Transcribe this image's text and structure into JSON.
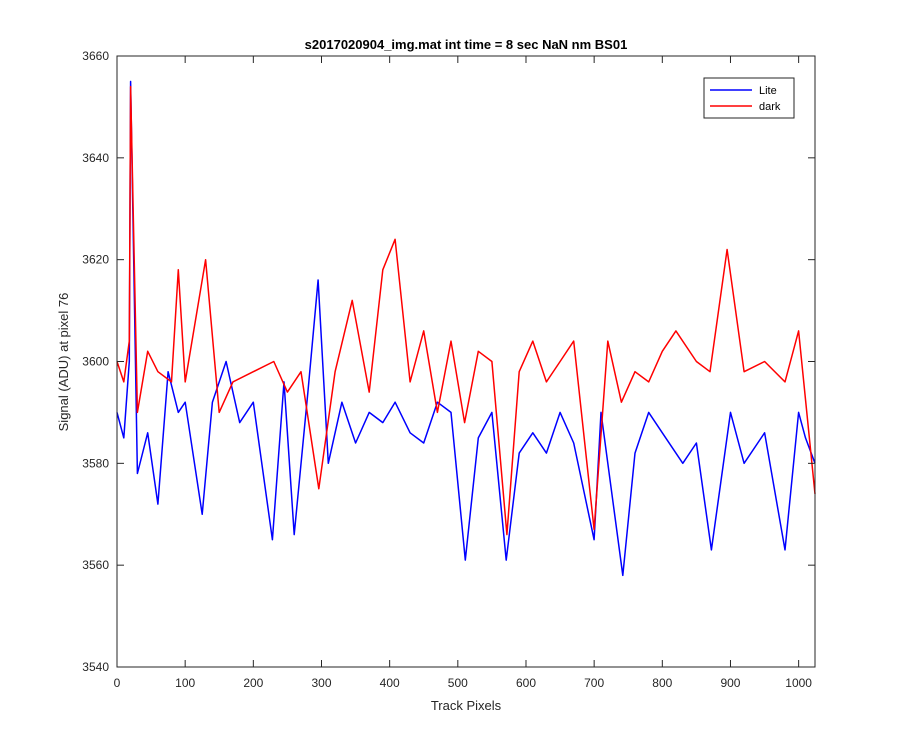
{
  "chart_data": {
    "type": "line",
    "title": "s2017020904_img.mat int time = 8 sec  NaN nm BS01",
    "xlabel": "Track Pixels",
    "ylabel": "Signal (ADU) at pixel 76",
    "xlim": [
      0,
      1024
    ],
    "ylim": [
      3540,
      3660
    ],
    "xticks": [
      0,
      100,
      200,
      300,
      400,
      500,
      600,
      700,
      800,
      900,
      1000
    ],
    "yticks": [
      3540,
      3560,
      3580,
      3600,
      3620,
      3640,
      3660
    ],
    "grid": false,
    "legend": {
      "position": "top-right"
    },
    "series": [
      {
        "name": "Lite",
        "color": "#0000ff",
        "x": [
          0,
          10,
          18,
          20,
          30,
          45,
          60,
          75,
          90,
          100,
          125,
          140,
          160,
          180,
          200,
          228,
          245,
          260,
          280,
          295,
          310,
          330,
          350,
          370,
          390,
          408,
          430,
          450,
          470,
          490,
          511,
          530,
          550,
          571,
          590,
          610,
          630,
          650,
          670,
          700,
          710,
          742,
          760,
          780,
          800,
          830,
          850,
          872,
          900,
          920,
          950,
          980,
          1000,
          1010,
          1024
        ],
        "y": [
          3590,
          3585,
          3600,
          3655,
          3578,
          3586,
          3572,
          3598,
          3590,
          3592,
          3570,
          3592,
          3600,
          3588,
          3592,
          3565,
          3596,
          3566,
          3594,
          3616,
          3580,
          3592,
          3584,
          3590,
          3588,
          3592,
          3586,
          3584,
          3592,
          3590,
          3561,
          3585,
          3590,
          3561,
          3582,
          3586,
          3582,
          3590,
          3584,
          3565,
          3590,
          3558,
          3582,
          3590,
          3586,
          3580,
          3584,
          3563,
          3590,
          3580,
          3586,
          3563,
          3590,
          3585,
          3580
        ]
      },
      {
        "name": "dark",
        "color": "#ff0000",
        "x": [
          0,
          10,
          18,
          20,
          30,
          45,
          60,
          80,
          90,
          100,
          130,
          150,
          170,
          200,
          230,
          250,
          270,
          296,
          320,
          345,
          370,
          390,
          408,
          430,
          450,
          470,
          490,
          510,
          530,
          550,
          572,
          590,
          610,
          630,
          650,
          670,
          700,
          720,
          740,
          760,
          780,
          800,
          820,
          850,
          870,
          895,
          920,
          950,
          980,
          1000,
          1024
        ],
        "y": [
          3600,
          3596,
          3604,
          3654,
          3590,
          3602,
          3598,
          3596,
          3618,
          3596,
          3620,
          3590,
          3596,
          3598,
          3600,
          3594,
          3598,
          3575,
          3598,
          3612,
          3594,
          3618,
          3624,
          3596,
          3606,
          3590,
          3604,
          3588,
          3602,
          3600,
          3566,
          3598,
          3604,
          3596,
          3600,
          3604,
          3567,
          3604,
          3592,
          3598,
          3596,
          3602,
          3606,
          3600,
          3598,
          3622,
          3598,
          3600,
          3596,
          3606,
          3574
        ]
      }
    ]
  }
}
